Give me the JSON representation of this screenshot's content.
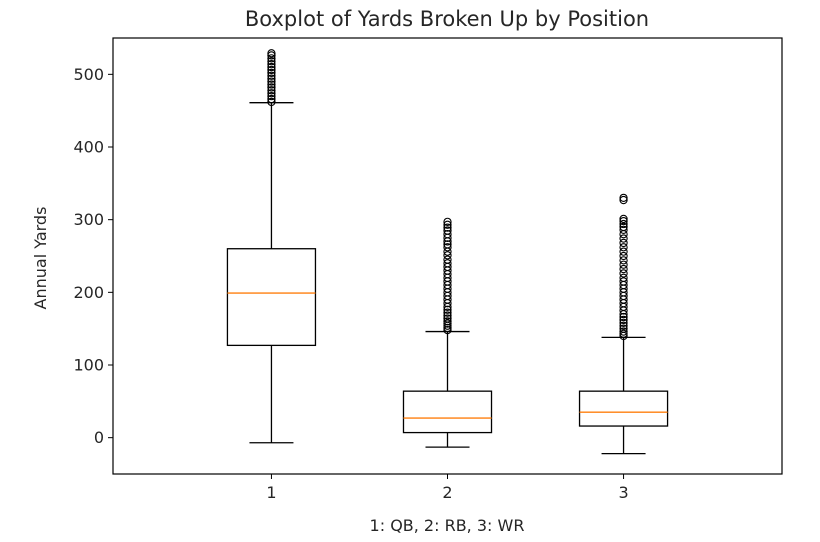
{
  "chart_data": {
    "type": "box",
    "title": "Boxplot of Yards Broken Up by Position",
    "xlabel": "1: QB, 2: RB, 3: WR",
    "ylabel": "Annual Yards",
    "categories": [
      "1",
      "2",
      "3"
    ],
    "yticks": [
      0,
      100,
      200,
      300,
      400,
      500
    ],
    "ylim": [
      -50,
      550
    ],
    "grid": false,
    "boxes": [
      {
        "category": "1",
        "whisker_low": -7,
        "q1": 127,
        "median": 199,
        "q3": 260,
        "whisker_high": 461,
        "outliers": [
          462,
          466,
          470,
          474,
          478,
          482,
          486,
          490,
          494,
          498,
          502,
          506,
          510,
          514,
          518,
          522,
          526,
          529
        ]
      },
      {
        "category": "2",
        "whisker_low": -13,
        "q1": 7,
        "median": 27,
        "q3": 64,
        "whisker_high": 146,
        "outliers": [
          148,
          151,
          154,
          157,
          160,
          164,
          168,
          172,
          176,
          180,
          185,
          190,
          195,
          200,
          205,
          210,
          215,
          220,
          225,
          230,
          235,
          240,
          245,
          251,
          256,
          262,
          266,
          270,
          275,
          280,
          285,
          289,
          293,
          297
        ]
      },
      {
        "category": "3",
        "whisker_low": -22,
        "q1": 16,
        "median": 35,
        "q3": 64,
        "whisker_high": 138,
        "outliers": [
          140,
          143,
          146,
          150,
          154,
          158,
          162,
          166,
          170,
          175,
          180,
          185,
          190,
          195,
          200,
          205,
          210,
          215,
          220,
          226,
          232,
          238,
          244,
          250,
          256,
          262,
          268,
          274,
          280,
          286,
          290,
          294,
          298,
          301,
          327,
          330
        ]
      }
    ],
    "colors": {
      "box": "#000000",
      "median": "#ff7f0e",
      "outlier": "#000000"
    }
  }
}
